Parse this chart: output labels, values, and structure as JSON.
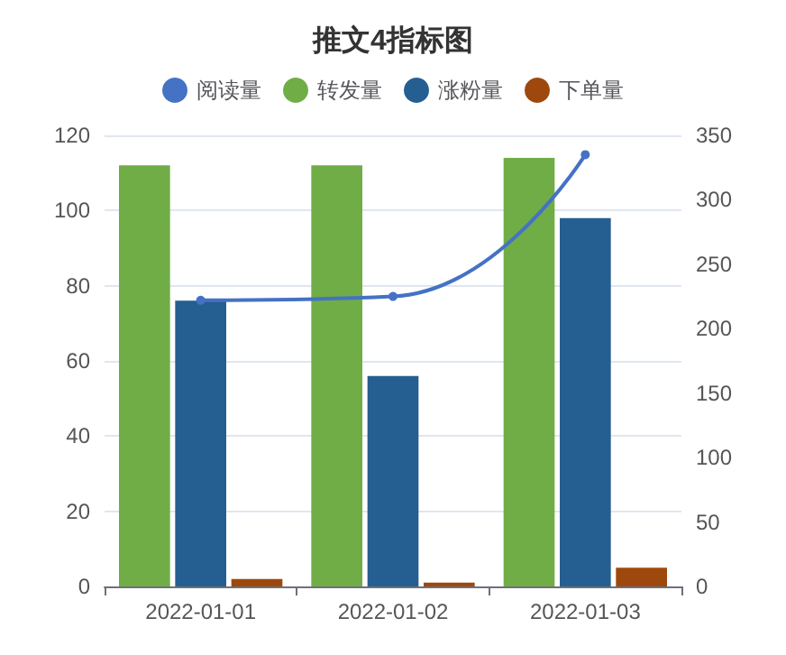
{
  "chart_data": {
    "type": "bar",
    "title": "推文4指标图",
    "categories": [
      "2022-01-01",
      "2022-01-02",
      "2022-01-03"
    ],
    "series": [
      {
        "name": "阅读量",
        "type": "line",
        "axis": "y2",
        "color": "#4472c4",
        "values": [
          222,
          225,
          335
        ]
      },
      {
        "name": "转发量",
        "color": "#70ad47",
        "values": [
          112,
          112,
          114
        ]
      },
      {
        "name": "涨粉量",
        "color": "#255e91",
        "values": [
          76,
          56,
          98
        ]
      },
      {
        "name": "下单量",
        "color": "#9e480e",
        "values": [
          2,
          1,
          5
        ]
      }
    ],
    "ylim": [
      0,
      120
    ],
    "yticks": [
      0,
      20,
      40,
      60,
      80,
      100,
      120
    ],
    "y2lim": [
      0,
      350
    ],
    "y2ticks": [
      0,
      50,
      100,
      150,
      200,
      250,
      300,
      350
    ],
    "grid": "y",
    "legend": "top",
    "marker": "circle"
  }
}
